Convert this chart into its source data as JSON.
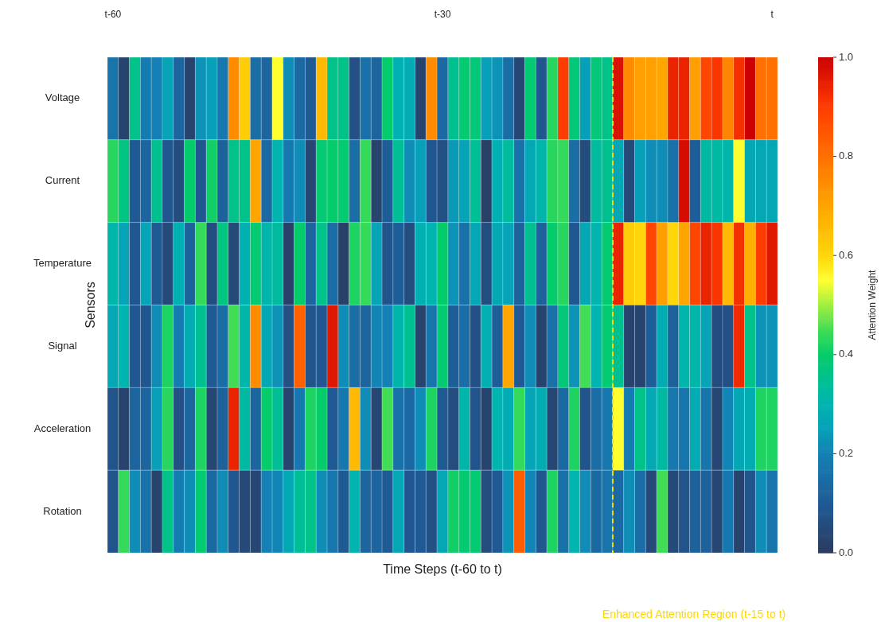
{
  "chart_data": {
    "type": "heatmap",
    "xlabel": "Time Steps (t-60 to t)",
    "ylabel": "Sensors",
    "clabel": "Attention Weight",
    "categories": [
      "t-60",
      null,
      null,
      null,
      null,
      null,
      null,
      null,
      null,
      null,
      null,
      null,
      null,
      null,
      null,
      null,
      null,
      null,
      null,
      null,
      null,
      null,
      null,
      null,
      null,
      null,
      null,
      null,
      null,
      null,
      "t-30",
      null,
      null,
      null,
      null,
      null,
      null,
      null,
      null,
      null,
      null,
      null,
      null,
      null,
      null,
      null,
      null,
      null,
      null,
      null,
      null,
      null,
      null,
      null,
      null,
      null,
      null,
      null,
      null,
      null,
      "t"
    ],
    "y_categories": [
      "Voltage",
      "Current",
      "Temperature",
      "Signal",
      "Acceleration",
      "Rotation"
    ],
    "cells": [
      [
        0.17,
        0.03,
        0.36,
        0.19,
        0.2,
        0.26,
        0.13,
        0.03,
        0.23,
        0.25,
        0.18,
        0.75,
        0.62,
        0.15,
        0.13,
        0.55,
        0.22,
        0.14,
        0.1,
        0.66,
        0.36,
        0.36,
        0.07,
        0.16,
        0.13,
        0.4,
        0.29,
        0.28,
        0.03,
        0.75,
        0.14,
        0.35,
        0.39,
        0.38,
        0.25,
        0.23,
        0.15,
        0.04,
        0.39,
        0.09,
        0.43,
        0.9,
        0.38,
        0.25,
        0.38,
        0.36,
        0.97,
        0.75,
        0.71,
        0.71,
        0.7,
        0.94,
        0.94,
        0.71,
        0.88,
        0.91,
        0.76,
        0.92,
        1.0,
        0.8,
        0.8
      ],
      [
        0.43,
        0.37,
        0.1,
        0.13,
        0.35,
        0.09,
        0.06,
        0.4,
        0.09,
        0.41,
        0.12,
        0.36,
        0.36,
        0.7,
        0.14,
        0.3,
        0.18,
        0.22,
        0.04,
        0.39,
        0.4,
        0.39,
        0.15,
        0.44,
        0.03,
        0.11,
        0.34,
        0.22,
        0.25,
        0.09,
        0.07,
        0.24,
        0.26,
        0.34,
        0.02,
        0.29,
        0.33,
        0.16,
        0.27,
        0.31,
        0.43,
        0.44,
        0.15,
        0.06,
        0.33,
        0.35,
        0.27,
        0.05,
        0.25,
        0.22,
        0.22,
        0.16,
        0.98,
        0.11,
        0.32,
        0.32,
        0.31,
        0.55,
        0.27,
        0.27,
        0.27
      ],
      [
        0.31,
        0.26,
        0.09,
        0.26,
        0.1,
        0.05,
        0.29,
        0.12,
        0.44,
        0.06,
        0.37,
        0.05,
        0.29,
        0.39,
        0.31,
        0.33,
        0.02,
        0.4,
        0.13,
        0.36,
        0.15,
        0.02,
        0.42,
        0.44,
        0.26,
        0.08,
        0.11,
        0.06,
        0.29,
        0.3,
        0.4,
        0.23,
        0.16,
        0.27,
        0.06,
        0.27,
        0.26,
        0.12,
        0.35,
        0.12,
        0.4,
        0.43,
        0.09,
        0.27,
        0.3,
        0.39,
        0.94,
        0.62,
        0.6,
        0.88,
        0.71,
        0.6,
        0.7,
        0.88,
        0.94,
        0.91,
        0.66,
        0.92,
        0.68,
        0.9,
        0.96
      ],
      [
        0.27,
        0.3,
        0.09,
        0.09,
        0.22,
        0.42,
        0.19,
        0.28,
        0.35,
        0.1,
        0.15,
        0.45,
        0.31,
        0.75,
        0.27,
        0.23,
        0.07,
        0.83,
        0.08,
        0.09,
        0.96,
        0.22,
        0.15,
        0.13,
        0.21,
        0.2,
        0.31,
        0.35,
        0.03,
        0.17,
        0.39,
        0.11,
        0.15,
        0.07,
        0.29,
        0.11,
        0.7,
        0.1,
        0.22,
        0.03,
        0.16,
        0.38,
        0.23,
        0.45,
        0.3,
        0.39,
        0.35,
        0.03,
        0.03,
        0.11,
        0.28,
        0.12,
        0.31,
        0.31,
        0.26,
        0.06,
        0.07,
        0.93,
        0.36,
        0.23,
        0.23
      ],
      [
        0.08,
        0.03,
        0.13,
        0.13,
        0.25,
        0.43,
        0.07,
        0.13,
        0.42,
        0.04,
        0.12,
        0.94,
        0.32,
        0.13,
        0.4,
        0.34,
        0.03,
        0.18,
        0.42,
        0.4,
        0.1,
        0.18,
        0.66,
        0.22,
        0.04,
        0.45,
        0.16,
        0.14,
        0.22,
        0.42,
        0.1,
        0.06,
        0.31,
        0.08,
        0.03,
        0.3,
        0.28,
        0.44,
        0.26,
        0.28,
        0.04,
        0.14,
        0.42,
        0.08,
        0.15,
        0.18,
        0.55,
        0.19,
        0.36,
        0.27,
        0.32,
        0.18,
        0.17,
        0.28,
        0.17,
        0.04,
        0.21,
        0.27,
        0.28,
        0.42,
        0.42
      ],
      [
        0.08,
        0.44,
        0.22,
        0.16,
        0.03,
        0.36,
        0.19,
        0.22,
        0.39,
        0.14,
        0.22,
        0.09,
        0.05,
        0.04,
        0.2,
        0.21,
        0.27,
        0.34,
        0.36,
        0.22,
        0.18,
        0.1,
        0.3,
        0.13,
        0.13,
        0.1,
        0.27,
        0.09,
        0.1,
        0.07,
        0.27,
        0.41,
        0.39,
        0.39,
        0.06,
        0.1,
        0.23,
        0.84,
        0.21,
        0.09,
        0.42,
        0.16,
        0.3,
        0.22,
        0.14,
        0.17,
        0.14,
        0.22,
        0.15,
        0.05,
        0.45,
        0.05,
        0.08,
        0.12,
        0.12,
        0.04,
        0.18,
        0.03,
        0.08,
        0.22,
        0.17
      ]
    ],
    "clim": [
      0,
      1
    ],
    "cticks": [
      {
        "value": 0,
        "label": "0.0"
      },
      0.2,
      0.4,
      0.6,
      0.8,
      {
        "value": 1,
        "label": "1.0"
      }
    ],
    "annotations": [
      "Enhanced Attention Region (t-15 to t)"
    ]
  }
}
